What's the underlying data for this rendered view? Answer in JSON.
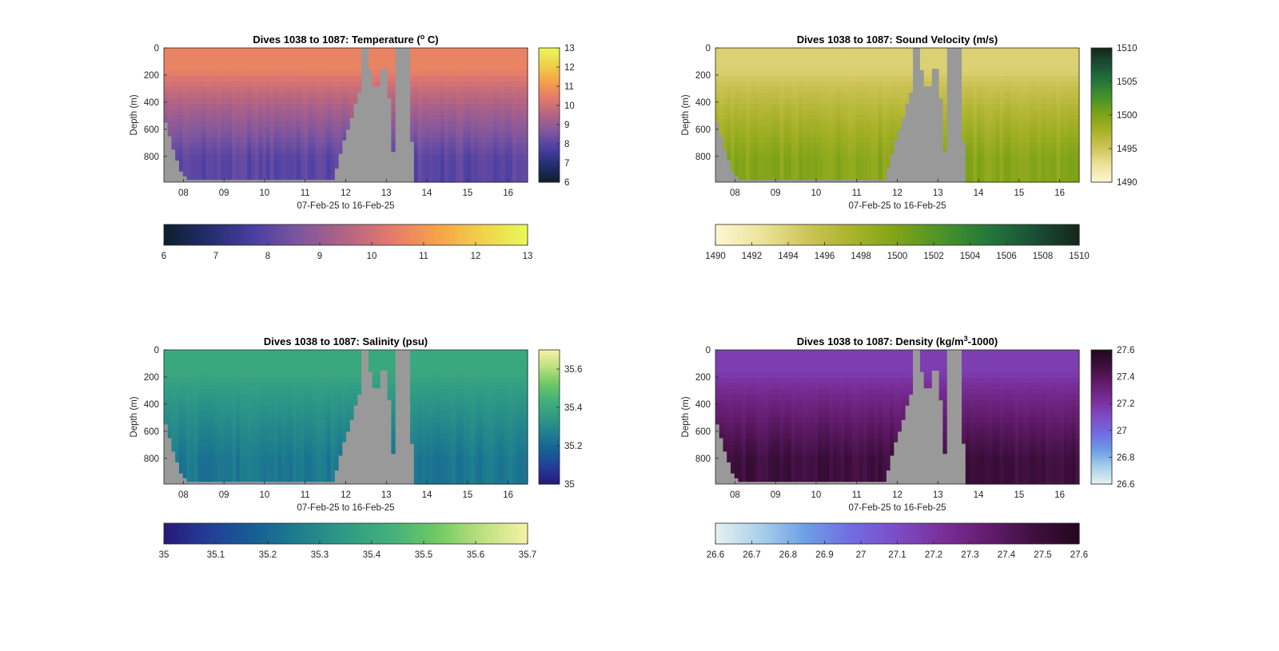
{
  "figure": {
    "background": "#ffffff"
  },
  "chart_data": [
    {
      "type": "heatmap",
      "title_main": "Dives 1038 to 1087: Temperature (",
      "title_sup": "o",
      "title_tail": " C)",
      "xlabel": "07-Feb-25 to 16-Feb-25",
      "ylabel": "Depth (m)",
      "x_ticks": [
        "08",
        "09",
        "10",
        "11",
        "12",
        "13",
        "14",
        "15",
        "16"
      ],
      "x_range_days": [
        7.52,
        16.48
      ],
      "y_ticks": [
        "0",
        "200",
        "400",
        "600",
        "800"
      ],
      "ylim": [
        990,
        0
      ],
      "surface_value": 10.6,
      "deep_value": 8.0,
      "colorbar_right": {
        "ticks": [
          "6",
          "7",
          "8",
          "9",
          "10",
          "11",
          "12",
          "13"
        ],
        "range": [
          6,
          13
        ]
      },
      "colorbar_bottom": {
        "ticks": [
          "6",
          "7",
          "8",
          "9",
          "10",
          "11",
          "12",
          "13"
        ],
        "range": [
          6,
          13
        ]
      },
      "colormap": [
        "#0c1f2c",
        "#232d6e",
        "#4a3fa3",
        "#80569f",
        "#b36483",
        "#e37a6c",
        "#f7a149",
        "#f0d24b",
        "#e9f858"
      ],
      "no_data_color": "#999999"
    },
    {
      "type": "heatmap",
      "title": "Dives 1038 to 1087: Sound Velocity (m/s)",
      "xlabel": "07-Feb-25 to 16-Feb-25",
      "ylabel": "Depth (m)",
      "x_ticks": [
        "08",
        "09",
        "10",
        "11",
        "12",
        "13",
        "14",
        "15",
        "16"
      ],
      "x_range_days": [
        7.52,
        16.48
      ],
      "y_ticks": [
        "0",
        "200",
        "400",
        "600",
        "800"
      ],
      "ylim": [
        990,
        0
      ],
      "surface_value": 1494,
      "deep_value": 1499.5,
      "colorbar_right": {
        "ticks": [
          "1490",
          "1495",
          "1500",
          "1505",
          "1510"
        ],
        "range": [
          1490,
          1510
        ]
      },
      "colorbar_bottom": {
        "ticks": [
          "1490",
          "1492",
          "1494",
          "1496",
          "1498",
          "1500",
          "1502",
          "1504",
          "1506",
          "1508",
          "1510"
        ],
        "range": [
          1490,
          1510
        ]
      },
      "colormap": [
        "#fdf6d4",
        "#ece49b",
        "#cfc55a",
        "#aab22a",
        "#7fa317",
        "#4a9329",
        "#23773b",
        "#1a5034",
        "#15261b"
      ],
      "no_data_color": "#999999"
    },
    {
      "type": "heatmap",
      "title": "Dives 1038 to 1087: Salinity (psu)",
      "xlabel": "07-Feb-25 to 16-Feb-25",
      "ylabel": "Depth (m)",
      "x_ticks": [
        "08",
        "09",
        "10",
        "11",
        "12",
        "13",
        "14",
        "15",
        "16"
      ],
      "x_range_days": [
        7.52,
        16.48
      ],
      "y_ticks": [
        "0",
        "200",
        "400",
        "600",
        "800"
      ],
      "ylim": [
        990,
        0
      ],
      "surface_value": 35.4,
      "deep_value": 35.24,
      "colorbar_right": {
        "ticks": [
          "35",
          "35.2",
          "35.4",
          "35.6"
        ],
        "range": [
          35,
          35.7
        ]
      },
      "colorbar_bottom": {
        "ticks": [
          "35",
          "35.1",
          "35.2",
          "35.3",
          "35.4",
          "35.5",
          "35.6",
          "35.7"
        ],
        "range": [
          35,
          35.7
        ]
      },
      "colormap": [
        "#28187a",
        "#233e98",
        "#155f96",
        "#1f7f8e",
        "#2f9b85",
        "#43b17b",
        "#6fc963",
        "#bde17f",
        "#f6f1a6"
      ],
      "no_data_color": "#999999"
    },
    {
      "type": "heatmap",
      "title_main": "Dives 1038 to 1087: Density (kg/m",
      "title_sup": "3",
      "title_tail": "-1000)",
      "xlabel": "07-Feb-25 to 16-Feb-25",
      "ylabel": "Depth (m)",
      "x_ticks": [
        "08",
        "09",
        "10",
        "11",
        "12",
        "13",
        "14",
        "15",
        "16"
      ],
      "x_range_days": [
        7.52,
        16.48
      ],
      "y_ticks": [
        "0",
        "200",
        "400",
        "600",
        "800"
      ],
      "ylim": [
        990,
        0
      ],
      "surface_value": 27.16,
      "deep_value": 27.48,
      "colorbar_right": {
        "ticks": [
          "26.6",
          "26.8",
          "27",
          "27.2",
          "27.4",
          "27.6"
        ],
        "range": [
          26.6,
          27.6
        ]
      },
      "colorbar_bottom": {
        "ticks": [
          "26.6",
          "26.7",
          "26.8",
          "26.9",
          "27",
          "27.1",
          "27.2",
          "27.3",
          "27.4",
          "27.5",
          "27.6"
        ],
        "range": [
          26.6,
          27.6
        ]
      },
      "colormap": [
        "#e6f1f1",
        "#a9d0ea",
        "#6c9ee6",
        "#716ce1",
        "#7d4cc6",
        "#7a2e9a",
        "#621c6c",
        "#3f0f3f",
        "#24061f"
      ],
      "no_data_color": "#999999"
    }
  ]
}
